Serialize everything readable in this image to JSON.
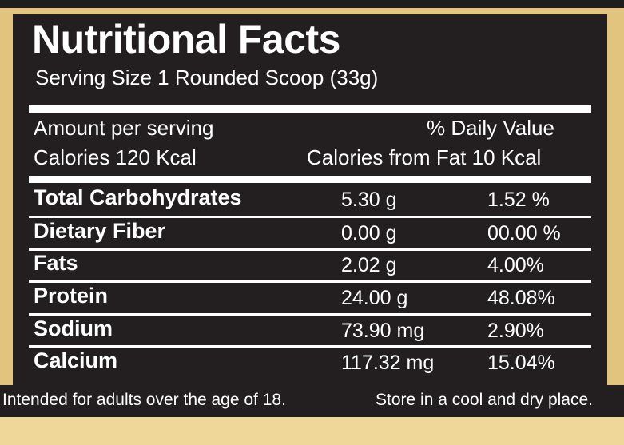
{
  "label": {
    "title": "Nutritional Facts",
    "serving_size": "Serving Size 1 Rounded Scoop (33g)",
    "amount_per_serving": "Amount per serving",
    "daily_value": "% Daily Value",
    "calories": "Calories 120 Kcal",
    "calories_from_fat": "Calories from Fat 10 Kcal",
    "rows": [
      {
        "name": "Total Carbohydrates",
        "amount": "5.30 g",
        "dv": "1.52 %"
      },
      {
        "name": "Dietary Fiber",
        "amount": "0.00 g",
        "dv": "00.00 %"
      },
      {
        "name": "Fats",
        "amount": "2.02 g",
        "dv": "4.00%"
      },
      {
        "name": "Protein",
        "amount": "24.00 g",
        "dv": "48.08%"
      },
      {
        "name": "Sodium",
        "amount": "73.90 mg",
        "dv": "2.90%"
      },
      {
        "name": "Calcium",
        "amount": "117.32 mg",
        "dv": "15.04%"
      }
    ]
  },
  "footer": {
    "left_note": "Intended for adults over the age of 18.",
    "right_note": "Store in a cool and dry place."
  },
  "colors": {
    "panel": "#231f20",
    "gold": "#e3c47e",
    "text": "#ffffff"
  }
}
